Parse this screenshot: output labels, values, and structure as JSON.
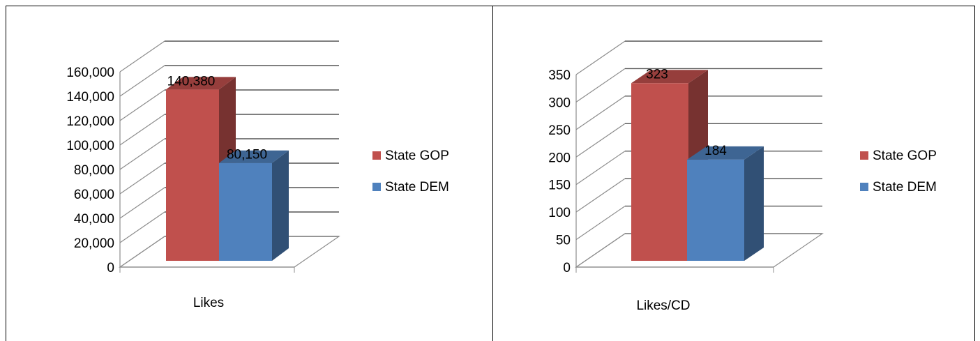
{
  "chart_data": [
    {
      "type": "bar",
      "categories": [
        "Likes"
      ],
      "series": [
        {
          "name": "State GOP",
          "values": [
            140380
          ]
        },
        {
          "name": "State DEM",
          "values": [
            80150
          ]
        }
      ],
      "data_labels": [
        "140,380",
        "80,150"
      ],
      "ylim": [
        0,
        160000
      ],
      "yticks": [
        "0",
        "20,000",
        "40,000",
        "60,000",
        "80,000",
        "100,000",
        "120,000",
        "140,000",
        "160,000"
      ],
      "grid": true,
      "legend": "right",
      "colors": {
        "State GOP": "#c0504d",
        "State DEM": "#4f81bd"
      }
    },
    {
      "type": "bar",
      "categories": [
        "Likes/CD"
      ],
      "series": [
        {
          "name": "State GOP",
          "values": [
            323
          ]
        },
        {
          "name": "State DEM",
          "values": [
            184
          ]
        }
      ],
      "data_labels": [
        "323",
        "184"
      ],
      "ylim": [
        0,
        350
      ],
      "yticks": [
        "0",
        "50",
        "100",
        "150",
        "200",
        "250",
        "300",
        "350"
      ],
      "grid": true,
      "legend": "right",
      "colors": {
        "State GOP": "#c0504d",
        "State DEM": "#4f81bd"
      }
    }
  ]
}
